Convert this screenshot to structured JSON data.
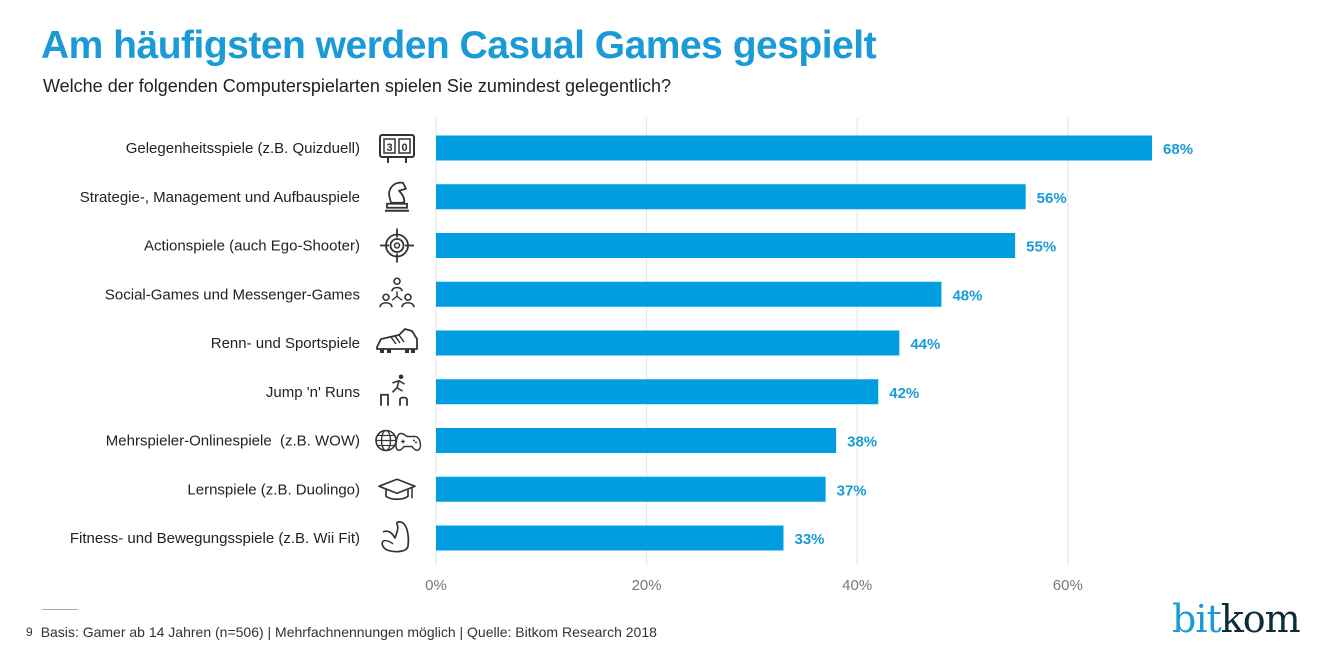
{
  "header": {
    "title": "Am häufigsten werden Casual Games gespielt",
    "subtitle": "Welche der folgenden Computerspielarten spielen Sie zumindest gelegentlich?"
  },
  "chart_data": {
    "type": "bar",
    "orientation": "horizontal",
    "title": "Am häufigsten werden Casual Games gespielt",
    "subtitle": "Welche der folgenden Computerspielarten spielen Sie zumindest gelegentlich?",
    "categories": [
      "Gelegenheitsspiele (z.B. Quizduell)",
      "Strategie-, Management und Aufbauspiele",
      "Actionspiele (auch Ego-Shooter)",
      "Social-Games und Messenger-Games",
      "Renn- und Sportspiele",
      "Jump 'n' Runs",
      "Mehrspieler-Onlinespiele  (z.B. WOW)",
      "Lernspiele (z.B. Duolingo)",
      "Fitness- und Bewegungsspiele (z.B. Wii Fit)"
    ],
    "icons": [
      "scoreboard-icon",
      "chess-knight-icon",
      "crosshair-target-icon",
      "social-network-icon",
      "football-boot-icon",
      "jumping-runner-icon",
      "globe-gamepad-icon",
      "graduation-cap-icon",
      "flexed-arm-icon"
    ],
    "values": [
      68,
      56,
      55,
      48,
      44,
      42,
      38,
      37,
      33
    ],
    "value_labels": [
      "68%",
      "56%",
      "55%",
      "48%",
      "44%",
      "42%",
      "38%",
      "37%",
      "33%"
    ],
    "xlabel": "",
    "ylabel": "",
    "xlim": [
      0,
      70
    ],
    "x_ticks": [
      0,
      20,
      40,
      60
    ],
    "x_tick_labels": [
      "0%",
      "20%",
      "40%",
      "60%"
    ],
    "grid": true,
    "legend": "none",
    "bar_color": "#009de0",
    "label_color": "#1a9ad6"
  },
  "footer": {
    "page_number": "9",
    "note": "Basis: Gamer ab 14 Jahren (n=506) | Mehrfachnennungen möglich | Quelle: Bitkom Research 2018"
  },
  "logo": {
    "part1": "bit",
    "part2": "kom"
  }
}
